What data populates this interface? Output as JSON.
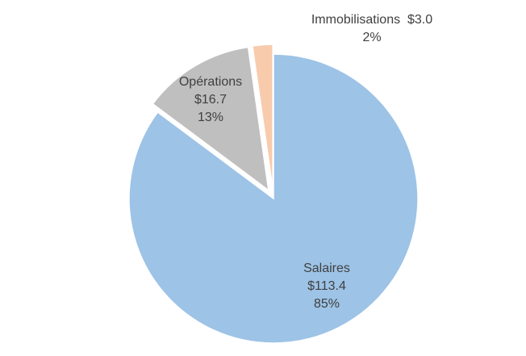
{
  "chart_data": {
    "type": "pie",
    "title": "",
    "slices": [
      {
        "name": "Salaires",
        "value_label": "$113.4",
        "percent_label": "85%",
        "value": 113.4,
        "percent": 85,
        "color": "#9DC3E6",
        "exploded": false
      },
      {
        "name": "Opérations",
        "value_label": "$16.7",
        "percent_label": "13%",
        "value": 16.7,
        "percent": 13,
        "color": "#BFBFBF",
        "exploded": true
      },
      {
        "name": "Immobilisations",
        "value_label": "$3.0",
        "percent_label": "2%",
        "value": 3.0,
        "percent": 2,
        "color": "#F8CBAD",
        "exploded": true
      }
    ],
    "legend": "none",
    "colors": {
      "label_text": "#404040",
      "slice_border": "#ffffff"
    }
  }
}
